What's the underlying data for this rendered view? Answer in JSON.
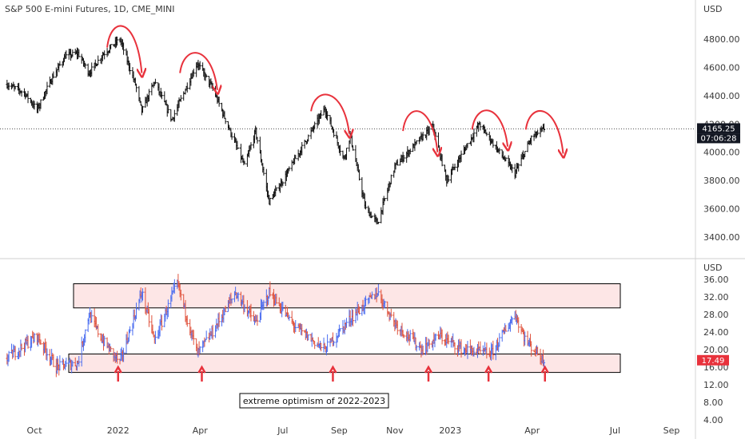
{
  "chart_data": [
    {
      "type": "ohlc",
      "title": "S&P 500 E-mini Futures, 1D, CME_MINI",
      "currency": "USD",
      "ylim": [
        3300,
        4950
      ],
      "yticks": [
        "4800.00",
        "4600.00",
        "4400.00",
        "4200.00",
        "4000.00",
        "3800.00",
        "3600.00",
        "3400.00"
      ],
      "ytick_values": [
        4800,
        4600,
        4400,
        4200,
        4000,
        3800,
        3600,
        3400
      ],
      "xticks": [
        "Oct",
        "2022",
        "Apr",
        "Jul",
        "Sep",
        "Nov",
        "2023",
        "Apr",
        "Jul",
        "Sep"
      ],
      "xtick_dates": [
        "2021-10-01",
        "2022-01-01",
        "2022-04-01",
        "2022-07-01",
        "2022-09-01",
        "2022-11-01",
        "2023-01-01",
        "2023-04-01",
        "2023-07-01",
        "2023-09-01"
      ],
      "last_price": "4165.25",
      "last_value": 4165.25,
      "countdown": "07:06:28",
      "price_path": [
        {
          "date": "2021-09-01",
          "value": 4480
        },
        {
          "date": "2021-09-20",
          "value": 4420
        },
        {
          "date": "2021-10-04",
          "value": 4300
        },
        {
          "date": "2021-10-20",
          "value": 4520
        },
        {
          "date": "2021-11-04",
          "value": 4680
        },
        {
          "date": "2021-11-18",
          "value": 4700
        },
        {
          "date": "2021-11-30",
          "value": 4560
        },
        {
          "date": "2021-12-15",
          "value": 4690
        },
        {
          "date": "2022-01-03",
          "value": 4800
        },
        {
          "date": "2022-01-20",
          "value": 4480
        },
        {
          "date": "2022-01-27",
          "value": 4290
        },
        {
          "date": "2022-02-10",
          "value": 4500
        },
        {
          "date": "2022-03-01",
          "value": 4230
        },
        {
          "date": "2022-03-29",
          "value": 4630
        },
        {
          "date": "2022-04-15",
          "value": 4450
        },
        {
          "date": "2022-05-20",
          "value": 3900
        },
        {
          "date": "2022-06-01",
          "value": 4150
        },
        {
          "date": "2022-06-16",
          "value": 3650
        },
        {
          "date": "2022-07-01",
          "value": 3800
        },
        {
          "date": "2022-08-16",
          "value": 4310
        },
        {
          "date": "2022-09-06",
          "value": 3950
        },
        {
          "date": "2022-09-13",
          "value": 4120
        },
        {
          "date": "2022-09-30",
          "value": 3600
        },
        {
          "date": "2022-10-13",
          "value": 3500
        },
        {
          "date": "2022-11-01",
          "value": 3900
        },
        {
          "date": "2022-11-30",
          "value": 4100
        },
        {
          "date": "2022-12-13",
          "value": 4180
        },
        {
          "date": "2022-12-28",
          "value": 3800
        },
        {
          "date": "2023-01-15",
          "value": 4000
        },
        {
          "date": "2023-02-02",
          "value": 4200
        },
        {
          "date": "2023-02-24",
          "value": 4000
        },
        {
          "date": "2023-03-13",
          "value": 3850
        },
        {
          "date": "2023-03-31",
          "value": 4100
        },
        {
          "date": "2023-04-14",
          "value": 4165
        }
      ],
      "annotations": [
        {
          "shape": "curved-arrow-down",
          "start": "2021-12-20",
          "end": "2022-01-27",
          "start_value": 4740,
          "peak_value": 4900,
          "end_value": 4560
        },
        {
          "shape": "curved-arrow-down",
          "start": "2022-03-10",
          "end": "2022-04-20",
          "start_value": 4560,
          "peak_value": 4700,
          "end_value": 4440
        },
        {
          "shape": "curved-arrow-down",
          "start": "2022-08-01",
          "end": "2022-09-12",
          "start_value": 4290,
          "peak_value": 4400,
          "end_value": 4130
        },
        {
          "shape": "curved-arrow-down",
          "start": "2022-11-10",
          "end": "2022-12-18",
          "start_value": 4150,
          "peak_value": 4290,
          "end_value": 4000
        },
        {
          "shape": "curved-arrow-down",
          "start": "2023-01-25",
          "end": "2023-03-05",
          "start_value": 4160,
          "peak_value": 4290,
          "end_value": 4040
        },
        {
          "shape": "curved-arrow-down",
          "start": "2023-03-25",
          "end": "2023-05-05",
          "start_value": 4160,
          "peak_value": 4290,
          "end_value": 3990
        }
      ],
      "horizontal_line": {
        "value": 4165.25,
        "style": "dotted"
      }
    },
    {
      "type": "ohlc",
      "currency": "USD",
      "ylim": [
        4,
        40
      ],
      "yticks": [
        "36.00",
        "32.00",
        "28.00",
        "24.00",
        "20.00",
        "16.00",
        "12.00",
        "8.00",
        "4.00"
      ],
      "ytick_values": [
        36,
        32,
        28,
        24,
        20,
        16,
        12,
        8,
        4
      ],
      "last_price": "17.49",
      "last_value": 17.49,
      "up_color": "#4a6cf0",
      "down_color": "#e0533d",
      "value_path": [
        {
          "date": "2021-09-01",
          "value": 18
        },
        {
          "date": "2021-09-20",
          "value": 21
        },
        {
          "date": "2021-10-04",
          "value": 23
        },
        {
          "date": "2021-10-25",
          "value": 16
        },
        {
          "date": "2021-11-18",
          "value": 17
        },
        {
          "date": "2021-11-30",
          "value": 28
        },
        {
          "date": "2021-12-15",
          "value": 22
        },
        {
          "date": "2022-01-03",
          "value": 17
        },
        {
          "date": "2022-01-27",
          "value": 33
        },
        {
          "date": "2022-02-10",
          "value": 22
        },
        {
          "date": "2022-03-07",
          "value": 35
        },
        {
          "date": "2022-03-29",
          "value": 19
        },
        {
          "date": "2022-04-15",
          "value": 24
        },
        {
          "date": "2022-05-10",
          "value": 33
        },
        {
          "date": "2022-06-01",
          "value": 26
        },
        {
          "date": "2022-06-16",
          "value": 33
        },
        {
          "date": "2022-07-15",
          "value": 25
        },
        {
          "date": "2022-08-16",
          "value": 20
        },
        {
          "date": "2022-09-13",
          "value": 27
        },
        {
          "date": "2022-10-13",
          "value": 33
        },
        {
          "date": "2022-11-01",
          "value": 26
        },
        {
          "date": "2022-12-01",
          "value": 20
        },
        {
          "date": "2022-12-20",
          "value": 23
        },
        {
          "date": "2023-01-15",
          "value": 20
        },
        {
          "date": "2023-02-15",
          "value": 19
        },
        {
          "date": "2023-03-13",
          "value": 28
        },
        {
          "date": "2023-03-25",
          "value": 22
        },
        {
          "date": "2023-04-14",
          "value": 17.5
        }
      ],
      "zones": [
        {
          "low": 29.5,
          "high": 35
        },
        {
          "low": 14.8,
          "high": 19
        }
      ],
      "marker_dates": [
        "2022-01-01",
        "2022-04-03",
        "2022-08-25",
        "2022-12-08",
        "2023-02-12",
        "2023-04-15"
      ],
      "annotation_text": "extreme optimism of 2022-2023"
    }
  ]
}
